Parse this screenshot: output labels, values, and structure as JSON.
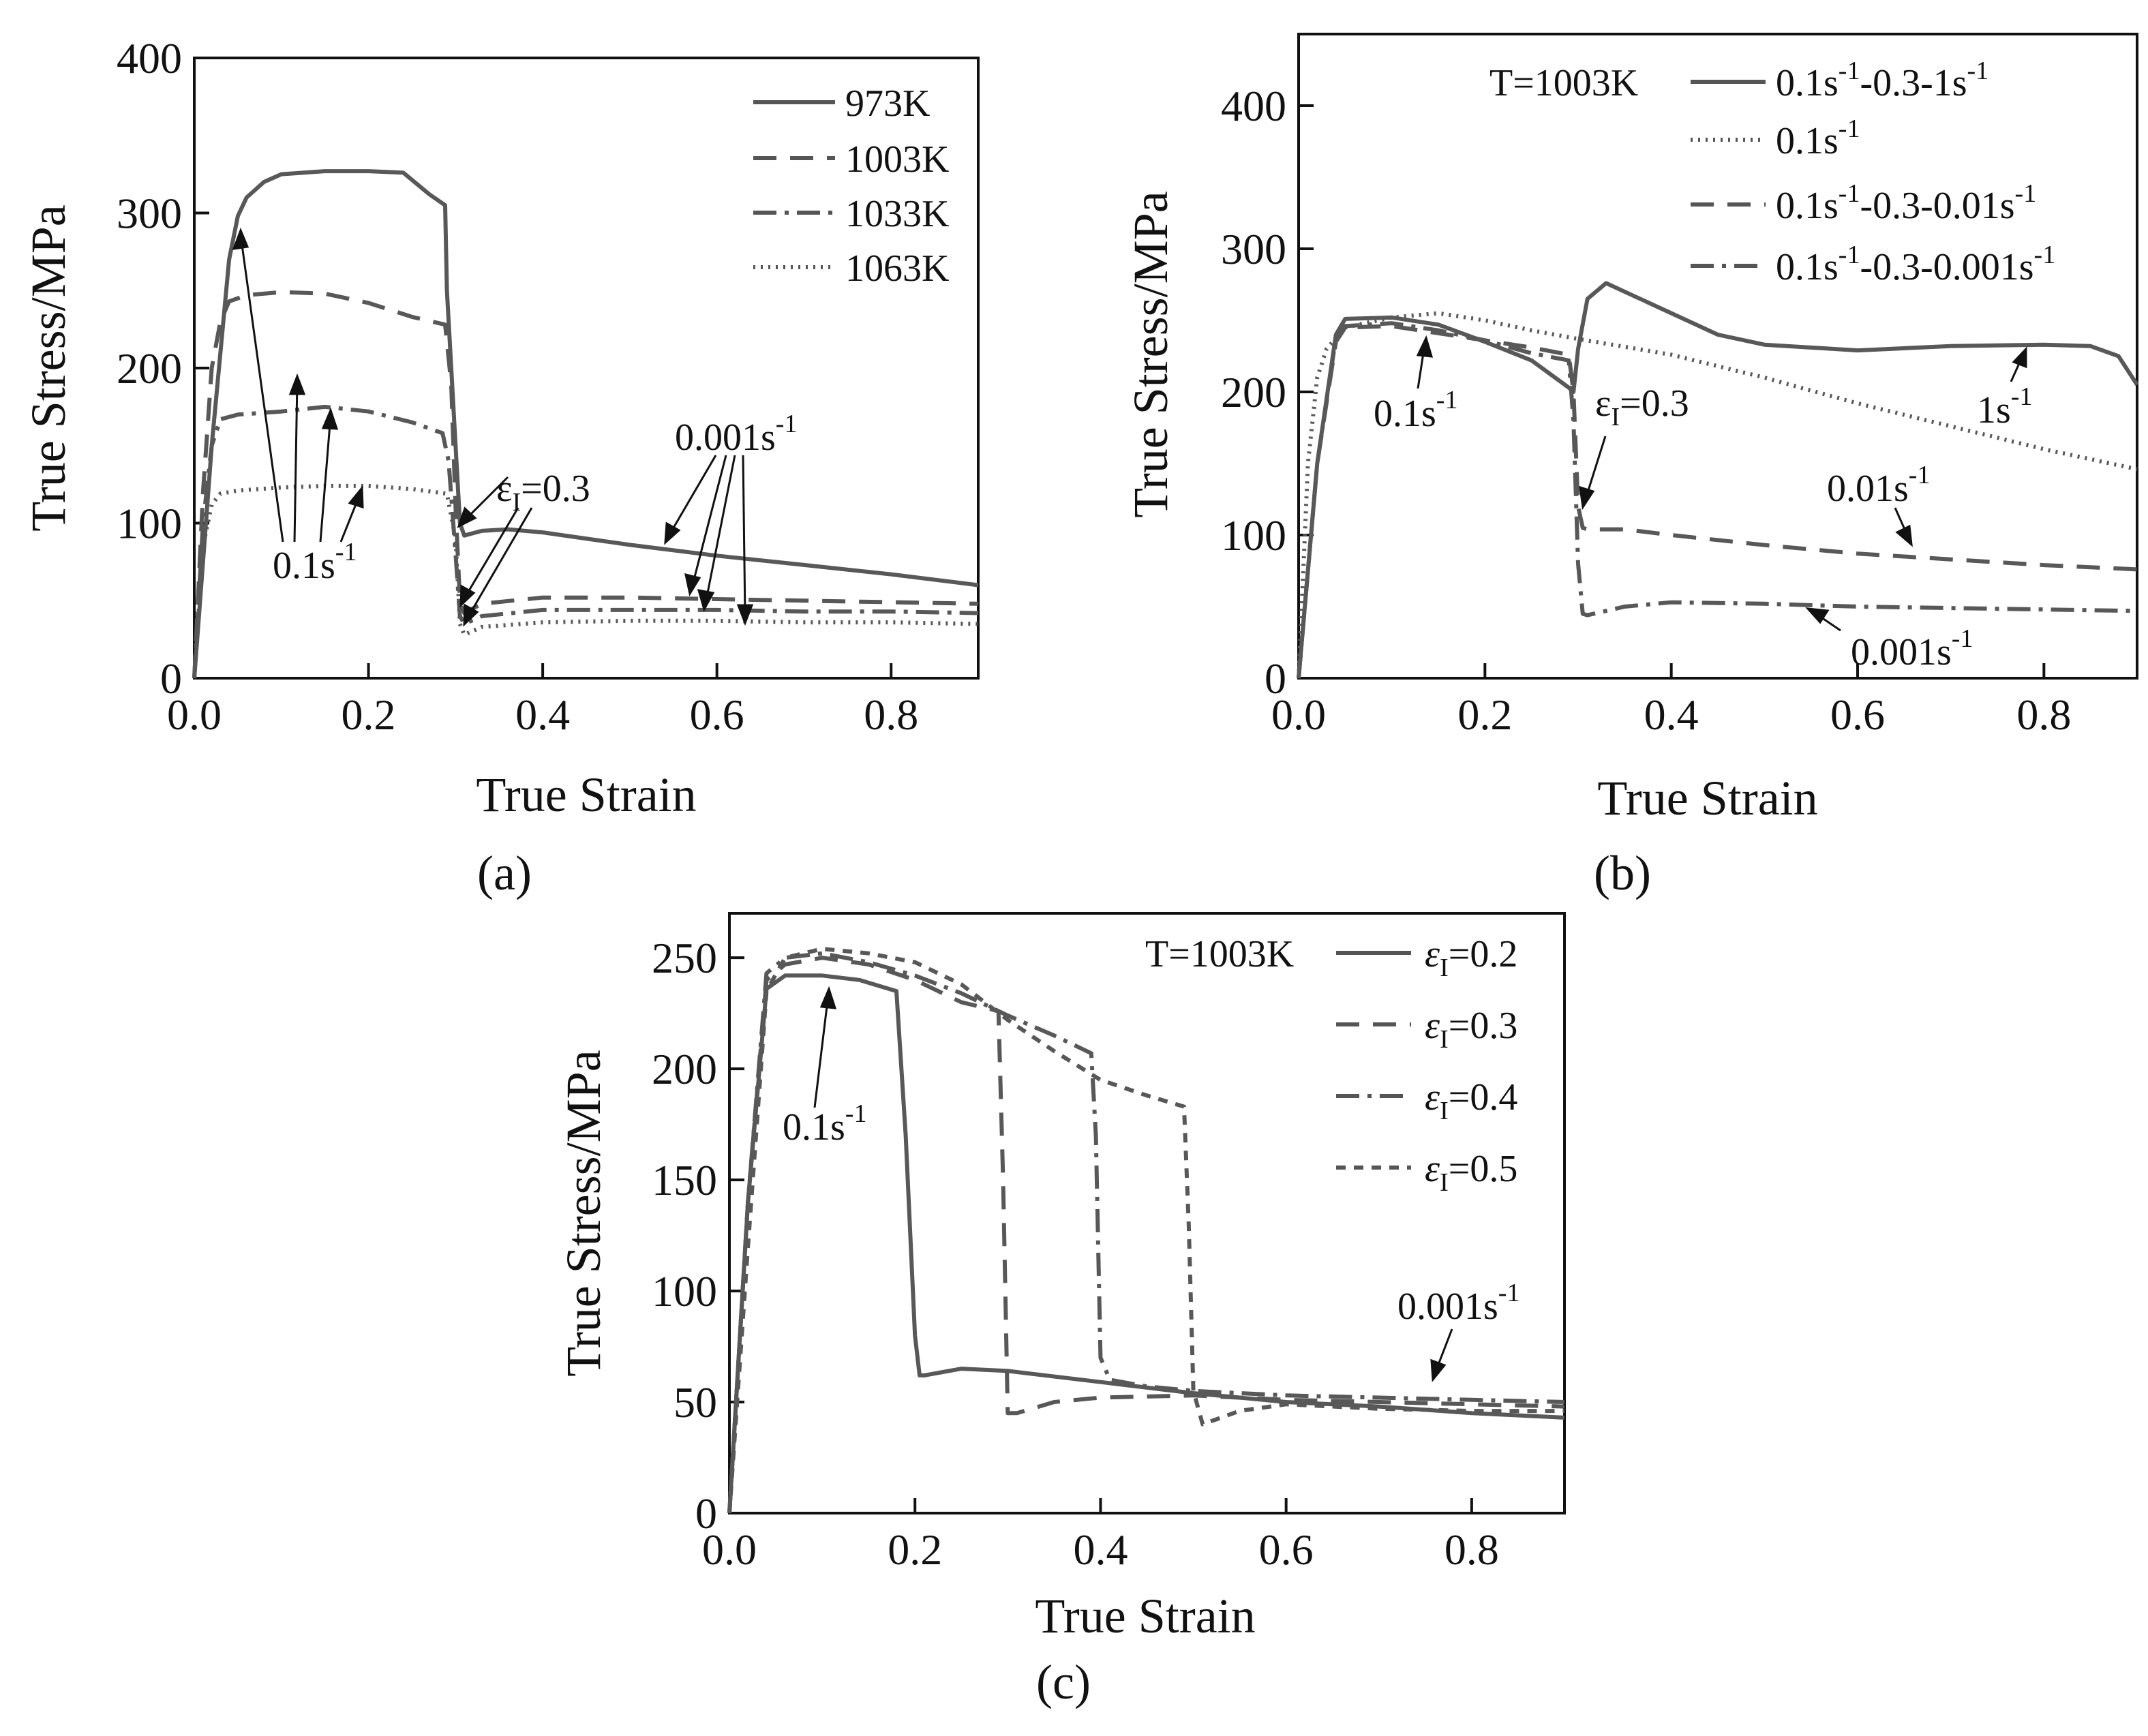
{
  "chart_data": [
    {
      "type": "line",
      "panel_label": "(a)",
      "xlabel": "True Strain",
      "ylabel": "True Stress/MPa",
      "xlim": [
        0,
        0.9
      ],
      "ylim": [
        0,
        400
      ],
      "xticks": [
        "0.0",
        "0.2",
        "0.4",
        "0.6",
        "0.8"
      ],
      "yticks": [
        "0",
        "100",
        "200",
        "300",
        "400"
      ],
      "legend": [
        "973K",
        "1003K",
        "1033K",
        "1063K"
      ],
      "series": [
        {
          "name": "973K",
          "style": "solid",
          "x": [
            0,
            0.02,
            0.04,
            0.05,
            0.06,
            0.08,
            0.1,
            0.15,
            0.2,
            0.24,
            0.27,
            0.288,
            0.29,
            0.3,
            0.305,
            0.31,
            0.33,
            0.36,
            0.4,
            0.5,
            0.6,
            0.7,
            0.8,
            0.9
          ],
          "y": [
            0,
            150,
            270,
            298,
            310,
            320,
            325,
            327,
            327,
            326,
            312,
            305,
            250,
            150,
            100,
            92,
            95,
            96,
            94,
            86,
            79,
            73,
            67,
            60
          ]
        },
        {
          "name": "1003K",
          "style": "dashed",
          "x": [
            0,
            0.01,
            0.02,
            0.03,
            0.04,
            0.06,
            0.1,
            0.15,
            0.2,
            0.25,
            0.288,
            0.295,
            0.3,
            0.305,
            0.31,
            0.33,
            0.4,
            0.5,
            0.6,
            0.7,
            0.8,
            0.9
          ],
          "y": [
            0,
            120,
            200,
            230,
            243,
            247,
            249,
            248,
            242,
            233,
            228,
            190,
            110,
            50,
            42,
            48,
            52,
            52,
            51,
            50,
            49,
            48
          ]
        },
        {
          "name": "1033K",
          "style": "dashdot",
          "x": [
            0,
            0.01,
            0.02,
            0.03,
            0.05,
            0.1,
            0.15,
            0.2,
            0.25,
            0.285,
            0.292,
            0.3,
            0.305,
            0.31,
            0.33,
            0.4,
            0.5,
            0.6,
            0.7,
            0.8,
            0.9
          ],
          "y": [
            0,
            100,
            150,
            167,
            170,
            172,
            175,
            172,
            165,
            158,
            140,
            80,
            40,
            35,
            40,
            44,
            44,
            44,
            43,
            43,
            42
          ]
        },
        {
          "name": "1063K",
          "style": "dotted",
          "x": [
            0,
            0.01,
            0.02,
            0.03,
            0.05,
            0.1,
            0.15,
            0.2,
            0.25,
            0.29,
            0.3,
            0.305,
            0.31,
            0.33,
            0.4,
            0.5,
            0.6,
            0.7,
            0.8,
            0.9
          ],
          "y": [
            0,
            85,
            112,
            119,
            121,
            123,
            124,
            124,
            122,
            119,
            90,
            35,
            28,
            33,
            36,
            37,
            37,
            36,
            36,
            35
          ]
        }
      ],
      "annotations": {
        "rate1": "0.1s",
        "rate1_exp": "-1",
        "rate2": "0.001s",
        "rate2_exp": "-1",
        "eps": "ε",
        "eps_sub": "I",
        "eps_val": "=0.3"
      }
    },
    {
      "type": "line",
      "panel_label": "(b)",
      "xlabel": "True Strain",
      "ylabel": "True Stress/MPa",
      "xlim": [
        0,
        0.9
      ],
      "ylim": [
        0,
        450
      ],
      "xticks": [
        "0.0",
        "0.2",
        "0.4",
        "0.6",
        "0.8"
      ],
      "yticks": [
        "0",
        "100",
        "200",
        "300",
        "400"
      ],
      "legend_title": "T=1003K",
      "legend": [
        {
          "base": "0.1s",
          "exp": "-1",
          "rest": "-0.3-1s",
          "exp2": "-1"
        },
        {
          "base": "0.1s",
          "exp": "-1",
          "rest": "",
          "exp2": ""
        },
        {
          "base": "0.1s",
          "exp": "-1",
          "rest": "-0.3-0.01s",
          "exp2": "-1"
        },
        {
          "base": "0.1s",
          "exp": "-1",
          "rest": "-0.3-0.001s",
          "exp2": "-1"
        }
      ],
      "series": [
        {
          "name": "0.1s-1-0.3-1s-1",
          "style": "solid",
          "x": [
            0,
            0.02,
            0.04,
            0.05,
            0.1,
            0.15,
            0.2,
            0.25,
            0.29,
            0.295,
            0.3,
            0.31,
            0.33,
            0.36,
            0.4,
            0.45,
            0.5,
            0.6,
            0.7,
            0.8,
            0.85,
            0.88,
            0.9
          ],
          "y": [
            0,
            150,
            240,
            251,
            252,
            247,
            235,
            222,
            203,
            200,
            230,
            265,
            276,
            267,
            255,
            240,
            233,
            229,
            232,
            233,
            232,
            225,
            205
          ]
        },
        {
          "name": "0.1s-1",
          "style": "dotted",
          "x": [
            0,
            0.01,
            0.02,
            0.03,
            0.05,
            0.1,
            0.15,
            0.2,
            0.25,
            0.3,
            0.4,
            0.5,
            0.6,
            0.7,
            0.8,
            0.9
          ],
          "y": [
            0,
            150,
            210,
            230,
            245,
            252,
            255,
            250,
            243,
            237,
            226,
            210,
            192,
            176,
            160,
            146
          ]
        },
        {
          "name": "0.1s-1-0.3-0.01s-1",
          "style": "dashed",
          "x": [
            0,
            0.02,
            0.04,
            0.05,
            0.1,
            0.15,
            0.2,
            0.25,
            0.29,
            0.295,
            0.3,
            0.305,
            0.31,
            0.35,
            0.4,
            0.5,
            0.6,
            0.7,
            0.8,
            0.9
          ],
          "y": [
            0,
            150,
            235,
            245,
            246,
            241,
            236,
            231,
            226,
            200,
            120,
            105,
            104,
            104,
            100,
            93,
            87,
            83,
            79,
            76
          ]
        },
        {
          "name": "0.1s-1-0.3-0.001s-1",
          "style": "dashdot",
          "x": [
            0,
            0.02,
            0.04,
            0.05,
            0.1,
            0.15,
            0.2,
            0.25,
            0.29,
            0.295,
            0.3,
            0.305,
            0.31,
            0.35,
            0.4,
            0.5,
            0.6,
            0.7,
            0.8,
            0.9
          ],
          "y": [
            0,
            150,
            238,
            246,
            248,
            243,
            236,
            227,
            222,
            180,
            80,
            45,
            44,
            50,
            53,
            52,
            50,
            49,
            48,
            47
          ]
        }
      ],
      "annotations": {
        "rate1": "0.1s",
        "rate1_exp": "-1",
        "eps": "ε",
        "eps_sub": "I",
        "eps_val": "=0.3",
        "r_1s": "1s",
        "r_1s_exp": "-1",
        "r_001": "0.01s",
        "r_001_exp": "-1",
        "r_0001": "0.001s",
        "r_0001_exp": "-1"
      }
    },
    {
      "type": "line",
      "panel_label": "(c)",
      "xlabel": "True Strain",
      "ylabel": "True Stress/MPa",
      "xlim": [
        0,
        0.9
      ],
      "ylim": [
        0,
        270
      ],
      "xticks": [
        "0.0",
        "0.2",
        "0.4",
        "0.6",
        "0.8"
      ],
      "yticks": [
        "0",
        "50",
        "100",
        "150",
        "200",
        "250"
      ],
      "legend_title": "T=1003K",
      "legend": [
        {
          "eps": "ε",
          "sub": "I",
          "val": "=0.2"
        },
        {
          "eps": "ε",
          "sub": "I",
          "val": "=0.3"
        },
        {
          "eps": "ε",
          "sub": "I",
          "val": "=0.4"
        },
        {
          "eps": "ε",
          "sub": "I",
          "val": "=0.5"
        }
      ],
      "series": [
        {
          "name": "εI=0.2",
          "style": "solid",
          "x": [
            0,
            0.02,
            0.04,
            0.06,
            0.1,
            0.14,
            0.18,
            0.19,
            0.2,
            0.205,
            0.21,
            0.25,
            0.3,
            0.4,
            0.5,
            0.6,
            0.7,
            0.8,
            0.9
          ],
          "y": [
            0,
            140,
            236,
            242,
            242,
            240,
            235,
            170,
            80,
            62,
            62,
            65,
            64,
            59,
            54,
            50,
            48,
            45,
            43
          ]
        },
        {
          "name": "εI=0.3",
          "style": "dashed",
          "x": [
            0,
            0.02,
            0.04,
            0.06,
            0.1,
            0.15,
            0.2,
            0.25,
            0.29,
            0.295,
            0.3,
            0.31,
            0.35,
            0.4,
            0.5,
            0.6,
            0.7,
            0.8,
            0.9
          ],
          "y": [
            0,
            140,
            240,
            247,
            250,
            247,
            240,
            230,
            226,
            150,
            45,
            45,
            50,
            52,
            53,
            51,
            50,
            49,
            48
          ]
        },
        {
          "name": "εI=0.4",
          "style": "dashdot",
          "x": [
            0,
            0.02,
            0.04,
            0.06,
            0.1,
            0.15,
            0.2,
            0.25,
            0.3,
            0.35,
            0.39,
            0.395,
            0.4,
            0.41,
            0.45,
            0.5,
            0.6,
            0.7,
            0.8,
            0.9
          ],
          "y": [
            0,
            140,
            243,
            250,
            252,
            248,
            242,
            234,
            224,
            215,
            207,
            170,
            70,
            60,
            57,
            55,
            53,
            52,
            51,
            50
          ]
        },
        {
          "name": "εI=0.5",
          "style": "shortdash",
          "x": [
            0,
            0.02,
            0.04,
            0.06,
            0.1,
            0.15,
            0.2,
            0.25,
            0.3,
            0.35,
            0.4,
            0.45,
            0.49,
            0.495,
            0.5,
            0.51,
            0.55,
            0.6,
            0.7,
            0.8,
            0.9
          ],
          "y": [
            0,
            120,
            235,
            250,
            254,
            252,
            248,
            238,
            222,
            208,
            195,
            188,
            183,
            130,
            55,
            40,
            46,
            49,
            47,
            46,
            46
          ]
        }
      ],
      "annotations": {
        "rate1": "0.1s",
        "rate1_exp": "-1",
        "rate2": "0.001s",
        "rate2_exp": "-1"
      }
    }
  ]
}
